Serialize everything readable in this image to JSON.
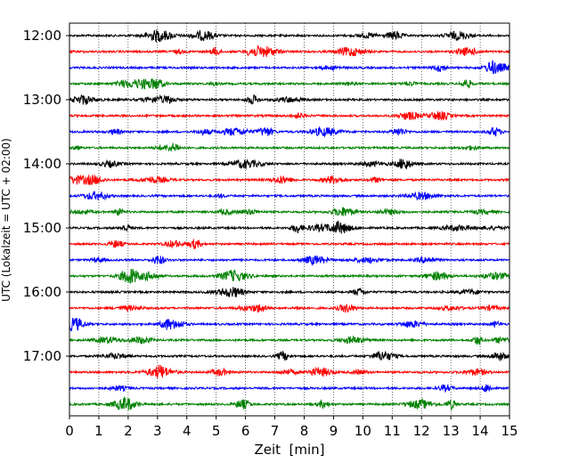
{
  "chart_data": {
    "type": "line",
    "title": "",
    "xlabel": "Zeit  [min]",
    "ylabel": "UTC (Lokalzeit = UTC + 02:00)",
    "xlim": [
      0,
      15
    ],
    "x_ticks": [
      0,
      1,
      2,
      3,
      4,
      5,
      6,
      7,
      8,
      9,
      10,
      11,
      12,
      13,
      14,
      15
    ],
    "x_tick_labels": [
      "0",
      "1",
      "2",
      "3",
      "4",
      "5",
      "6",
      "7",
      "8",
      "9",
      "10",
      "11",
      "12",
      "13",
      "14",
      "15"
    ],
    "y_tick_labels": [
      "12:00",
      "13:00",
      "14:00",
      "15:00",
      "16:00",
      "17:00"
    ],
    "y_tick_hours": [
      12,
      13,
      14,
      15,
      16,
      17
    ],
    "trace_start_hour": 12.0,
    "trace_interval_min": 15,
    "trace_count": 24,
    "trace_colors": [
      "#000000",
      "#ff0000",
      "#0000ff",
      "#008000"
    ],
    "vertical_gridlines": "dotted at each minute",
    "grid": true,
    "legend": "none"
  }
}
